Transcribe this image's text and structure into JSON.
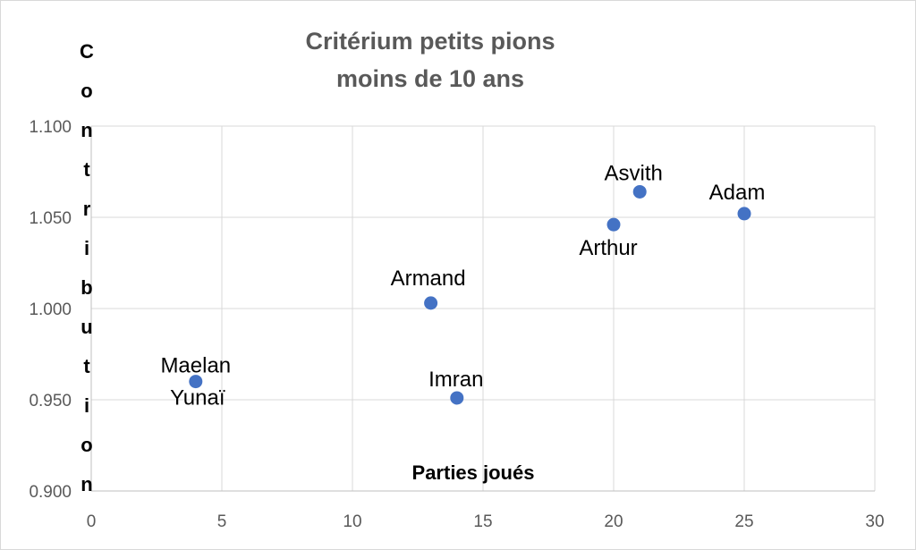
{
  "chart_data": {
    "type": "scatter",
    "title_lines": [
      "Critérium petits pions",
      "moins de 10 ans"
    ],
    "xlabel": "Parties joués",
    "ylabel": "Contribution",
    "xlim": [
      0,
      30
    ],
    "ylim": [
      0.9,
      1.1
    ],
    "x_ticks": [
      0,
      5,
      10,
      15,
      20,
      25,
      30
    ],
    "y_ticks": [
      0.9,
      0.95,
      1.0,
      1.05,
      1.1
    ],
    "y_tick_labels": [
      "0.900",
      "0.950",
      "1.000",
      "1.050",
      "1.100"
    ],
    "grid": true,
    "marker_color": "#4472c4",
    "points": [
      {
        "label": "Maelan",
        "x": 4,
        "y": 0.96
      },
      {
        "label": "Yunaï",
        "x": 4,
        "y": 0.96
      },
      {
        "label": "Armand",
        "x": 13,
        "y": 1.003
      },
      {
        "label": "Imran",
        "x": 14,
        "y": 0.951
      },
      {
        "label": "Arthur",
        "x": 20,
        "y": 1.046
      },
      {
        "label": "Asvith",
        "x": 21,
        "y": 1.064
      },
      {
        "label": "Adam",
        "x": 25,
        "y": 1.052
      }
    ]
  }
}
